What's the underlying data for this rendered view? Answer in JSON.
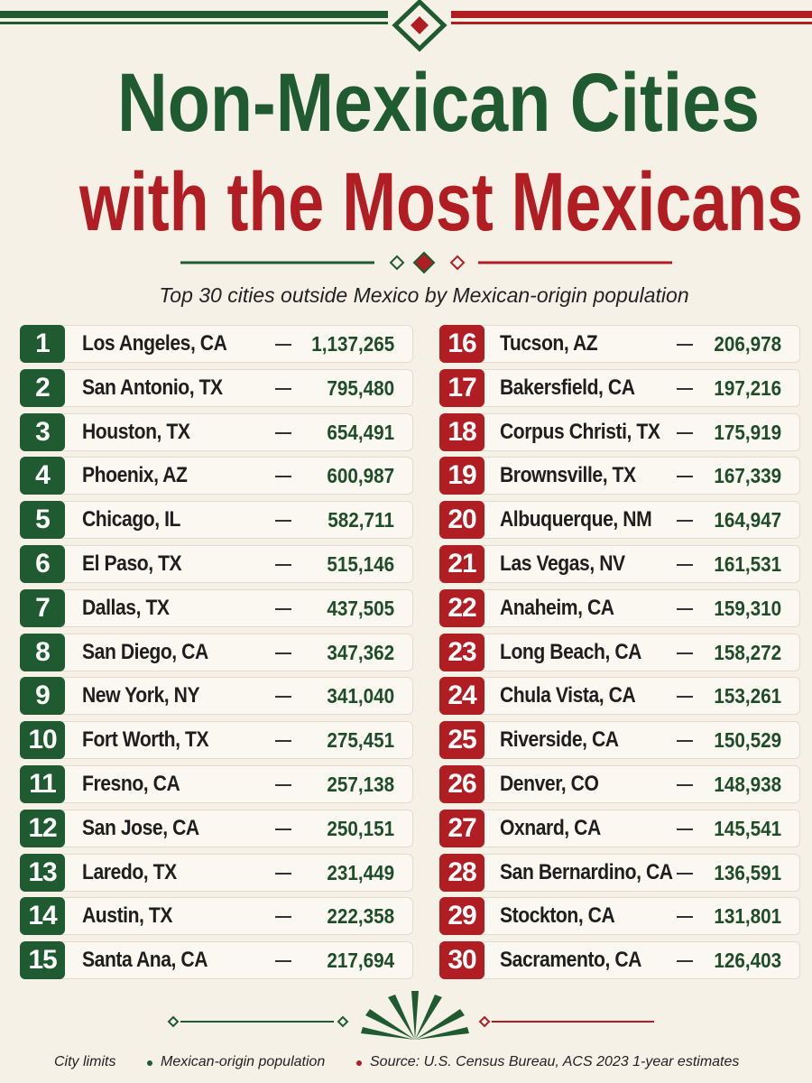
{
  "header": {
    "title_line1": "Non-Mexican Cities",
    "title_line2": "with the Most Mexicans",
    "subtitle": "Top 30 cities outside Mexico by Mexican-origin population"
  },
  "rows": [
    {
      "rank": 1,
      "city": "Los Angeles, CA",
      "population": "1,137,265"
    },
    {
      "rank": 2,
      "city": "San Antonio, TX",
      "population": "795,480"
    },
    {
      "rank": 3,
      "city": "Houston, TX",
      "population": "654,491"
    },
    {
      "rank": 4,
      "city": "Phoenix, AZ",
      "population": "600,987"
    },
    {
      "rank": 5,
      "city": "Chicago, IL",
      "population": "582,711"
    },
    {
      "rank": 6,
      "city": "El Paso, TX",
      "population": "515,146"
    },
    {
      "rank": 7,
      "city": "Dallas, TX",
      "population": "437,505"
    },
    {
      "rank": 8,
      "city": "San Diego, CA",
      "population": "347,362"
    },
    {
      "rank": 9,
      "city": "New York, NY",
      "population": "341,040"
    },
    {
      "rank": 10,
      "city": "Fort Worth, TX",
      "population": "275,451"
    },
    {
      "rank": 11,
      "city": "Fresno, CA",
      "population": "257,138"
    },
    {
      "rank": 12,
      "city": "San Jose, CA",
      "population": "250,151"
    },
    {
      "rank": 13,
      "city": "Laredo, TX",
      "population": "231,449"
    },
    {
      "rank": 14,
      "city": "Austin, TX",
      "population": "222,358"
    },
    {
      "rank": 15,
      "city": "Santa Ana, CA",
      "population": "217,694"
    },
    {
      "rank": 16,
      "city": "Tucson, AZ",
      "population": "206,978"
    },
    {
      "rank": 17,
      "city": "Bakersfield, CA",
      "population": "197,216"
    },
    {
      "rank": 18,
      "city": "Corpus Christi, TX",
      "population": "175,919"
    },
    {
      "rank": 19,
      "city": "Brownsville, TX",
      "population": "167,339"
    },
    {
      "rank": 20,
      "city": "Albuquerque, NM",
      "population": "164,947"
    },
    {
      "rank": 21,
      "city": "Las Vegas, NV",
      "population": "161,531"
    },
    {
      "rank": 22,
      "city": "Anaheim, CA",
      "population": "159,310"
    },
    {
      "rank": 23,
      "city": "Long Beach, CA",
      "population": "158,272"
    },
    {
      "rank": 24,
      "city": "Chula Vista, CA",
      "population": "153,261"
    },
    {
      "rank": 25,
      "city": "Riverside, CA",
      "population": "150,529"
    },
    {
      "rank": 26,
      "city": "Denver, CO",
      "population": "148,938"
    },
    {
      "rank": 27,
      "city": "Oxnard, CA",
      "population": "145,541"
    },
    {
      "rank": 28,
      "city": "San Bernardino, CA",
      "population": "136,591"
    },
    {
      "rank": 29,
      "city": "Stockton, CA",
      "population": "131,801"
    },
    {
      "rank": 30,
      "city": "Sacramento, CA",
      "population": "126,403"
    }
  ],
  "footer": {
    "items": [
      "City limits",
      "Mexican-origin population",
      "Source: U.S. Census Bureau, ACS 2023 1-year estimates"
    ]
  }
}
